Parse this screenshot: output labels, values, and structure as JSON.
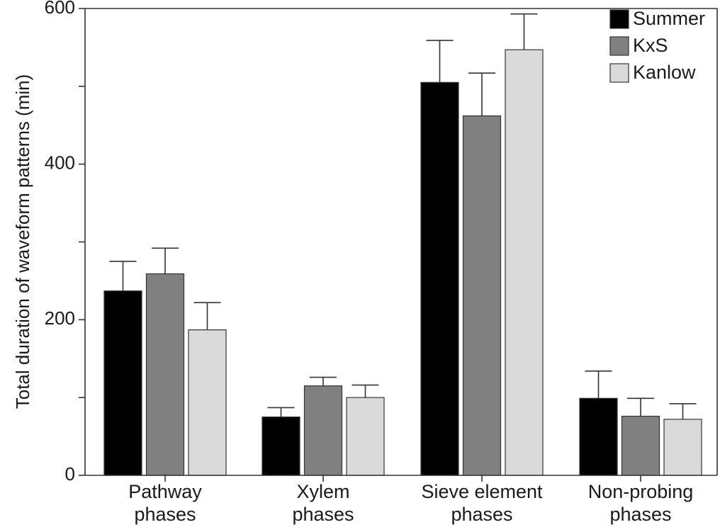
{
  "chart_data": {
    "type": "bar",
    "categories": [
      [
        "Pathway",
        "phases"
      ],
      [
        "Xylem",
        "phases"
      ],
      [
        "Sieve element",
        "phases"
      ],
      [
        "Non-probing",
        "phases"
      ]
    ],
    "series": [
      {
        "name": "Summer",
        "color": "#000000",
        "values": [
          237,
          75,
          505,
          99
        ],
        "errors": [
          38,
          12,
          54,
          35
        ]
      },
      {
        "name": "KxS",
        "color": "#808080",
        "values": [
          259,
          115,
          462,
          76
        ],
        "errors": [
          33,
          11,
          55,
          23
        ]
      },
      {
        "name": "Kanlow",
        "color": "#dadada",
        "values": [
          187,
          100,
          547,
          72
        ],
        "errors": [
          35,
          16,
          46,
          20
        ]
      }
    ],
    "ylabel": "Total duration of waveform patterns (min)",
    "xlabel": "",
    "ylim": [
      0,
      600
    ],
    "yticks": [
      0,
      200,
      400,
      600
    ],
    "legend": "top-right",
    "grid": false
  }
}
